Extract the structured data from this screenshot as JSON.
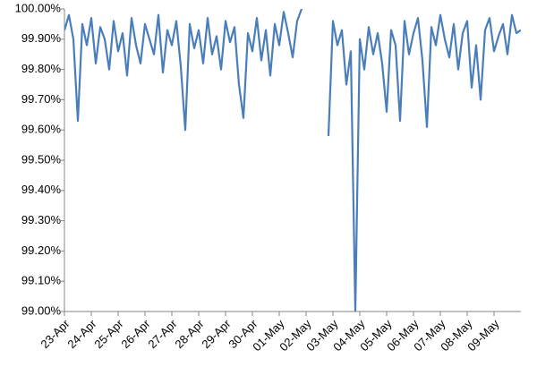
{
  "chart_data": {
    "type": "line",
    "color": "#4a7ebb",
    "x": [
      0,
      4,
      8,
      12,
      16,
      20,
      24,
      28,
      32,
      36,
      40,
      44,
      48,
      52,
      56,
      60,
      64,
      68,
      72,
      76,
      80,
      84,
      88,
      92,
      96,
      100,
      104,
      108,
      112,
      116,
      120,
      124,
      128,
      132,
      136,
      140,
      144,
      148,
      152,
      156,
      160,
      164,
      168,
      172,
      176,
      180,
      184,
      188,
      192,
      196,
      200,
      204,
      208,
      212,
      216,
      220,
      224,
      228,
      232,
      236,
      240,
      244,
      248,
      252,
      256,
      260,
      264,
      268,
      272,
      276,
      280,
      284,
      288,
      292,
      296,
      300,
      304,
      308,
      312,
      316,
      320,
      324,
      328,
      332,
      336,
      340,
      344,
      348,
      352,
      356,
      360,
      364,
      368,
      372,
      376,
      380,
      384,
      388,
      392,
      396,
      400,
      404,
      408
    ],
    "values": [
      99.93,
      99.98,
      99.9,
      99.63,
      99.95,
      99.88,
      99.97,
      99.82,
      99.94,
      99.9,
      99.8,
      99.96,
      99.86,
      99.92,
      99.78,
      99.97,
      99.88,
      99.82,
      99.95,
      99.9,
      99.85,
      99.98,
      99.79,
      99.93,
      99.88,
      99.96,
      99.81,
      99.6,
      99.95,
      99.87,
      99.93,
      99.82,
      99.97,
      99.85,
      99.91,
      99.8,
      99.96,
      99.89,
      99.94,
      99.75,
      99.64,
      99.92,
      99.86,
      99.97,
      99.83,
      99.93,
      99.78,
      99.95,
      99.88,
      99.99,
      99.92,
      99.84,
      99.96,
      100.0,
      null,
      null,
      null,
      null,
      null,
      99.58,
      99.96,
      99.88,
      99.93,
      99.75,
      99.86,
      99.0,
      99.9,
      99.8,
      99.94,
      99.85,
      99.92,
      99.82,
      99.66,
      99.93,
      99.88,
      99.63,
      99.96,
      99.85,
      99.92,
      99.97,
      99.83,
      99.61,
      99.94,
      99.88,
      99.98,
      99.9,
      99.84,
      99.95,
      99.8,
      99.92,
      99.96,
      99.74,
      99.88,
      99.7,
      99.93,
      99.97,
      99.86,
      99.91,
      99.95,
      99.85,
      99.98,
      99.92,
      99.93
    ],
    "xlim": [
      0,
      408
    ],
    "xticks": [
      {
        "value": 0,
        "label": "23-Apr"
      },
      {
        "value": 24,
        "label": "24-Apr"
      },
      {
        "value": 48,
        "label": "25-Apr"
      },
      {
        "value": 72,
        "label": "26-Apr"
      },
      {
        "value": 96,
        "label": "27-Apr"
      },
      {
        "value": 120,
        "label": "28-Apr"
      },
      {
        "value": 144,
        "label": "29-Apr"
      },
      {
        "value": 168,
        "label": "30-Apr"
      },
      {
        "value": 192,
        "label": "01-May"
      },
      {
        "value": 216,
        "label": "02-May"
      },
      {
        "value": 240,
        "label": "03-May"
      },
      {
        "value": 264,
        "label": "04-May"
      },
      {
        "value": 288,
        "label": "05-May"
      },
      {
        "value": 312,
        "label": "06-May"
      },
      {
        "value": 336,
        "label": "07-May"
      },
      {
        "value": 360,
        "label": "08-May"
      },
      {
        "value": 384,
        "label": "09-May"
      }
    ],
    "ylim": [
      99,
      100
    ],
    "yticks": [
      {
        "value": 99,
        "label": "99.00%"
      },
      {
        "value": 99.1,
        "label": "99.10%"
      },
      {
        "value": 99.2,
        "label": "99.20%"
      },
      {
        "value": 99.3,
        "label": "99.30%"
      },
      {
        "value": 99.4,
        "label": "99.40%"
      },
      {
        "value": 99.5,
        "label": "99.50%"
      },
      {
        "value": 99.6,
        "label": "99.60%"
      },
      {
        "value": 99.7,
        "label": "99.70%"
      },
      {
        "value": 99.8,
        "label": "99.80%"
      },
      {
        "value": 99.9,
        "label": "99.90%"
      },
      {
        "value": 100,
        "label": "100.00%"
      }
    ]
  }
}
